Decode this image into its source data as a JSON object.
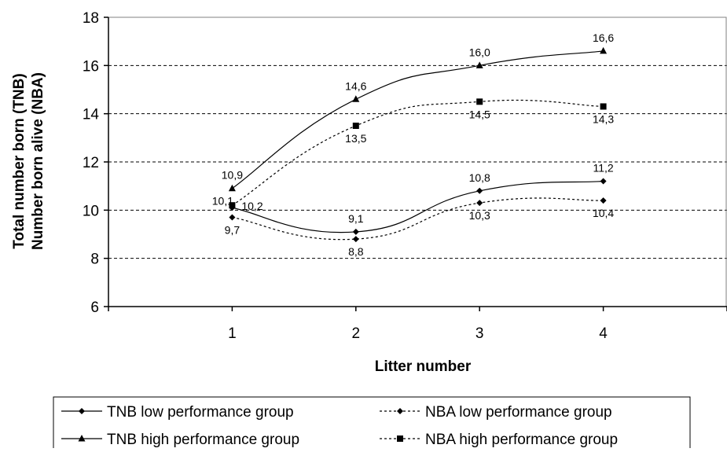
{
  "chart_data": {
    "type": "line",
    "title": "",
    "xlabel": "Litter number",
    "ylabel_lines": [
      "Total number born (TNB)",
      "Number born alive (NBA)"
    ],
    "x": [
      1,
      2,
      3,
      4
    ],
    "xlim": [
      0,
      5
    ],
    "ylim": [
      6,
      18
    ],
    "yticks": [
      6,
      8,
      10,
      12,
      14,
      16,
      18
    ],
    "grid": "horizontal dashed",
    "legend_position": "bottom",
    "series": [
      {
        "name": "TNB low performance group",
        "values": [
          10.1,
          9.1,
          10.8,
          11.2
        ],
        "labels": [
          "10,1",
          "9,1",
          "10,8",
          "11,2"
        ],
        "marker": "diamond",
        "dash": "solid",
        "label_side": "above"
      },
      {
        "name": "NBA low performance group",
        "values": [
          9.7,
          8.8,
          10.3,
          10.4
        ],
        "labels": [
          "9,7",
          "8,8",
          "10,3",
          "10,4"
        ],
        "marker": "diamond",
        "dash": "dotted",
        "label_side": "below"
      },
      {
        "name": "TNB high performance group",
        "values": [
          10.9,
          14.6,
          16.0,
          16.6
        ],
        "labels": [
          "10,9",
          "14,6",
          "16,0",
          "16,6"
        ],
        "marker": "triangle",
        "dash": "solid",
        "label_side": "above"
      },
      {
        "name": "NBA high performance group",
        "values": [
          10.2,
          13.5,
          14.5,
          14.3
        ],
        "labels": [
          "10,2",
          "13,5",
          "14,5",
          "14,3"
        ],
        "marker": "square",
        "dash": "dotted",
        "label_side": "below"
      }
    ]
  }
}
